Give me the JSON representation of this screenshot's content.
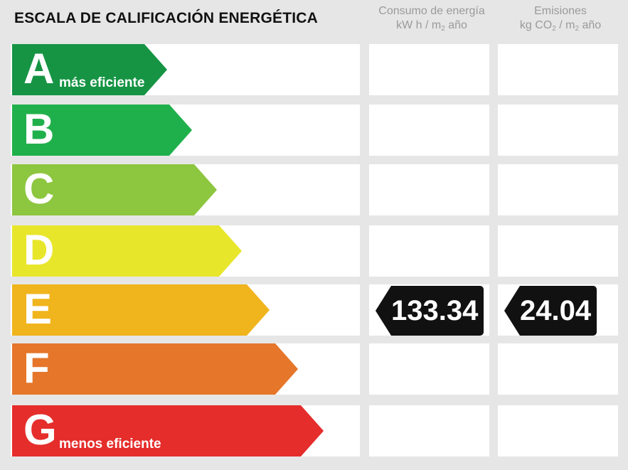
{
  "title": "ESCALA DE CALIFICACIÓN ENERGÉTICA",
  "columns": {
    "consumo": {
      "line1": "Consumo de energía",
      "line2_pre": "kW h / m",
      "line2_sub": "2",
      "line2_post": " año"
    },
    "emisiones": {
      "line1": "Emisiones",
      "line2_pre": "kg CO",
      "line2_sub": "2",
      "line2_mid": " / m",
      "line2_sub2": "2",
      "line2_post": " año"
    }
  },
  "ratings": [
    {
      "letter": "A",
      "label": "más eficiente",
      "color": "#169444"
    },
    {
      "letter": "B",
      "label": "",
      "color": "#20b04b"
    },
    {
      "letter": "C",
      "label": "",
      "color": "#8dc63f"
    },
    {
      "letter": "D",
      "label": "",
      "color": "#e8e62b"
    },
    {
      "letter": "E",
      "label": "",
      "color": "#f0b41c"
    },
    {
      "letter": "F",
      "label": "",
      "color": "#e5762a"
    },
    {
      "letter": "G",
      "label": "menos eficiente",
      "color": "#e52d2b"
    }
  ],
  "current": {
    "rating": "E",
    "consumo_value": "133.34",
    "emisiones_value": "24.04"
  }
}
